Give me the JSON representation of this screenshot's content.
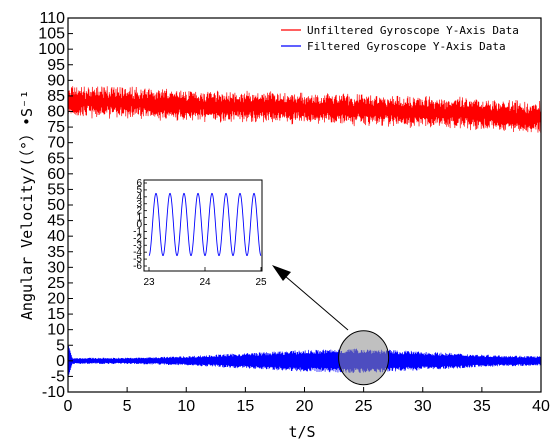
{
  "chart_data": {
    "type": "line",
    "xlabel": "t/S",
    "ylabel": "Angular Velocity/(（°）•S⁻¹",
    "xlim": [
      0,
      40
    ],
    "ylim": [
      -10,
      110
    ],
    "xticks": [
      0,
      5,
      10,
      15,
      20,
      25,
      30,
      35,
      40
    ],
    "yticks": [
      -10,
      -5,
      0,
      5,
      10,
      15,
      20,
      25,
      30,
      35,
      40,
      45,
      50,
      55,
      60,
      65,
      70,
      75,
      80,
      85,
      90,
      95,
      100,
      105,
      110
    ],
    "grid": false,
    "legend": "top-right",
    "series": [
      {
        "name": "Unfiltered Gyroscope Y-Axis Data",
        "color": "#ff0000",
        "x": [
          0,
          5,
          10,
          15,
          20,
          25,
          30,
          35,
          40
        ],
        "center": [
          83,
          83,
          82,
          81.5,
          81,
          80.5,
          80,
          79,
          78
        ],
        "amplitude": [
          4,
          4,
          4,
          4,
          4,
          4,
          4,
          4,
          4
        ]
      },
      {
        "name": "Filtered Gyroscope Y-Axis Data",
        "color": "#0000ff",
        "x": [
          0,
          5,
          10,
          15,
          20,
          25,
          30,
          35,
          40
        ],
        "center": [
          0,
          0,
          0,
          0,
          0,
          0,
          0,
          0,
          0
        ],
        "amplitude": [
          1,
          1,
          1.5,
          2.5,
          3.5,
          4,
          3,
          2,
          1.5
        ]
      }
    ],
    "inset": {
      "xlim": [
        23,
        25
      ],
      "ylim": [
        -6,
        6
      ],
      "xticks": [
        23,
        24,
        25
      ],
      "yticks": [
        -6,
        -5,
        -4,
        -3,
        -2,
        -1,
        0,
        1,
        2,
        3,
        4,
        5,
        6
      ],
      "series": {
        "color": "#0000ff",
        "amplitude": 4.5,
        "cycles_per_second": 4
      },
      "highlight": {
        "x": 25,
        "y": 1
      }
    }
  }
}
